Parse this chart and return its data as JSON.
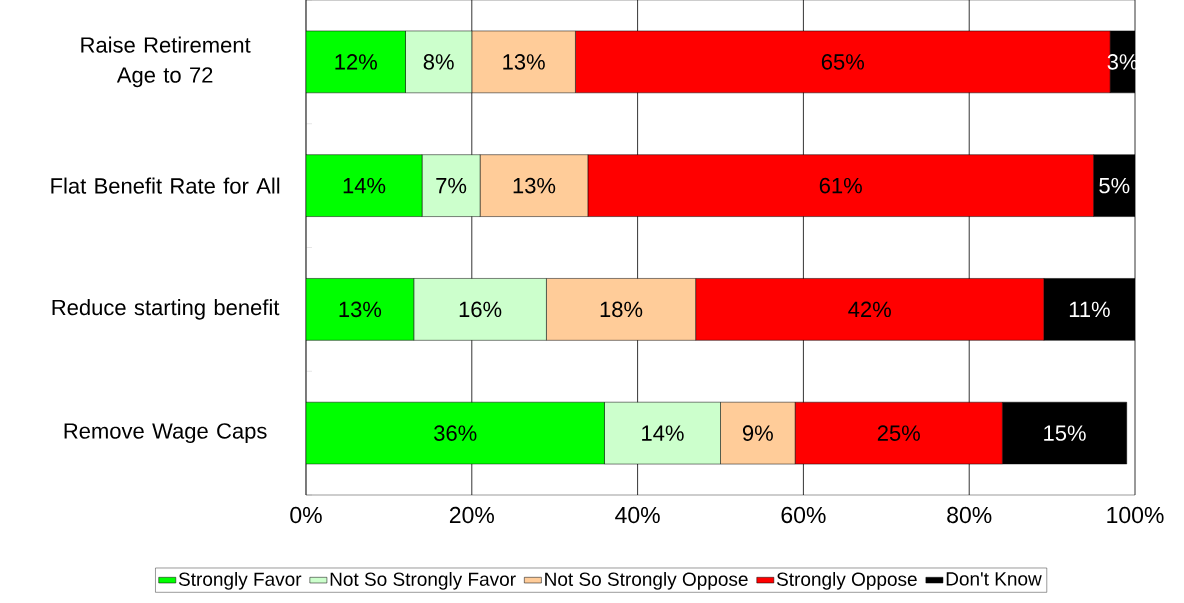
{
  "chart_data": {
    "type": "bar",
    "orientation": "horizontal",
    "stacked": true,
    "categories": [
      "Raise Retirement Age to 72",
      "Flat Benefit Rate for All",
      "Reduce starting benefit",
      "Remove Wage Caps"
    ],
    "series": [
      {
        "name": "Strongly Favor",
        "color": "#00ff00",
        "values": [
          12,
          14,
          13,
          36
        ],
        "value_labels": [
          "12%",
          "14%",
          "13%",
          "36%"
        ]
      },
      {
        "name": "Not So Strongly Favor",
        "color": "#ccffcc",
        "values": [
          8,
          7,
          16,
          14
        ],
        "value_labels": [
          "8%",
          "7%",
          "16%",
          "14%"
        ]
      },
      {
        "name": "Not So Strongly Oppose",
        "color": "#ffcc99",
        "values": [
          12.5,
          13,
          18,
          9
        ],
        "value_labels": [
          "13%",
          "13%",
          "18%",
          "9%"
        ]
      },
      {
        "name": "Strongly Oppose",
        "color": "#ff0000",
        "values": [
          64.5,
          61,
          42,
          25
        ],
        "value_labels": [
          "65%",
          "61%",
          "42%",
          "25%"
        ]
      },
      {
        "name": "Don't Know",
        "color": "#000000",
        "values": [
          3,
          5,
          11,
          15
        ],
        "value_labels": [
          "3%",
          "5%",
          "11%",
          "15%"
        ]
      }
    ],
    "xlim": [
      0,
      100
    ],
    "xticks": [
      {
        "value": 0,
        "label": "0%"
      },
      {
        "value": 20,
        "label": "20%"
      },
      {
        "value": 40,
        "label": "40%"
      },
      {
        "value": 60,
        "label": "60%"
      },
      {
        "value": 80,
        "label": "80%"
      },
      {
        "value": 100,
        "label": "100%"
      }
    ],
    "grid": "x",
    "legend": "bottom"
  }
}
